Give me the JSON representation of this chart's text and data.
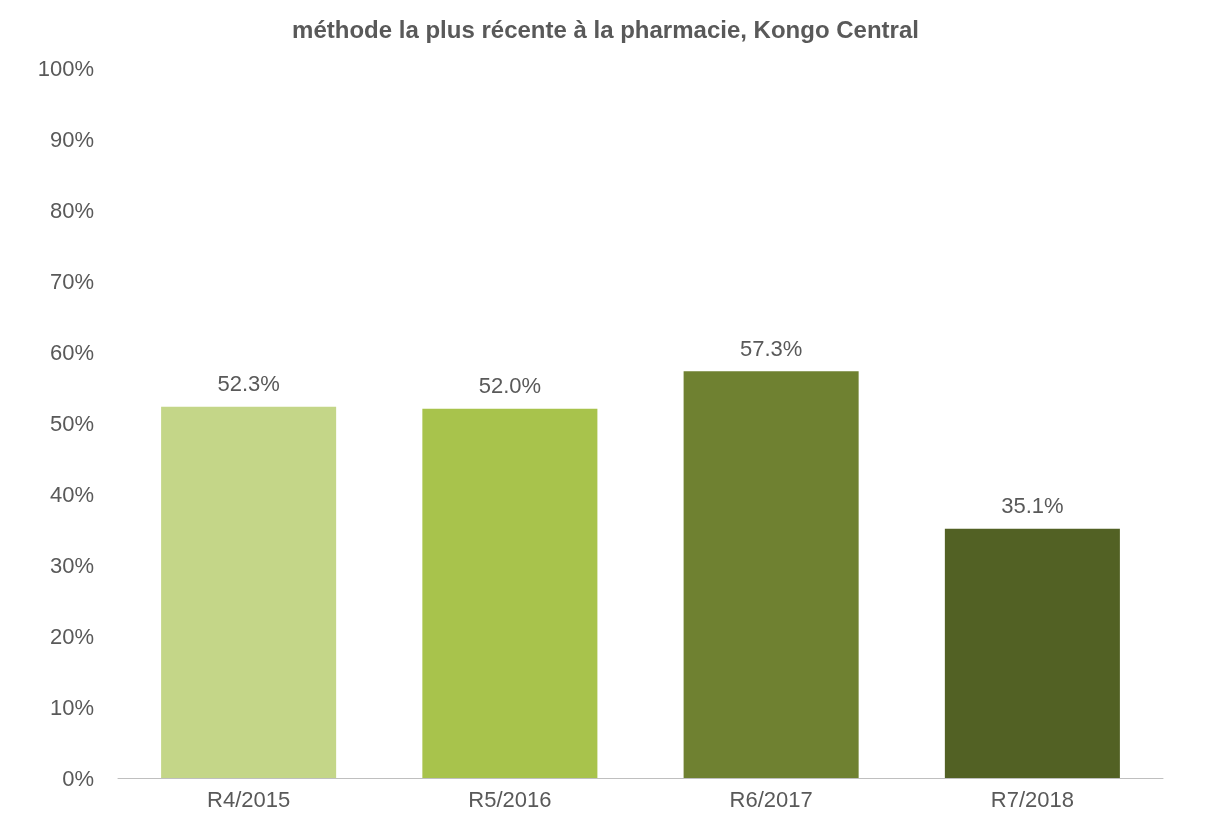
{
  "chart_data": {
    "type": "bar",
    "title": "méthode la plus récente à la pharmacie, Kongo Central",
    "categories": [
      "R4/2015",
      "R5/2016",
      "R6/2017",
      "R7/2018"
    ],
    "values": [
      52.3,
      52.0,
      57.3,
      35.1
    ],
    "colors": [
      "#c4d688",
      "#a8c34c",
      "#6f8131",
      "#526124"
    ],
    "value_labels": [
      "52.3%",
      "52.0%",
      "57.3%",
      "35.1%"
    ],
    "ylim": [
      0,
      100
    ],
    "yticks": [
      {
        "value": 0,
        "label": "0%"
      },
      {
        "value": 10,
        "label": "10%"
      },
      {
        "value": 20,
        "label": "20%"
      },
      {
        "value": 30,
        "label": "30%"
      },
      {
        "value": 40,
        "label": "40%"
      },
      {
        "value": 50,
        "label": "50%"
      },
      {
        "value": 60,
        "label": "60%"
      },
      {
        "value": 70,
        "label": "70%"
      },
      {
        "value": 80,
        "label": "80%"
      },
      {
        "value": 90,
        "label": "90%"
      },
      {
        "value": 100,
        "label": "100%"
      }
    ],
    "grid": false
  }
}
